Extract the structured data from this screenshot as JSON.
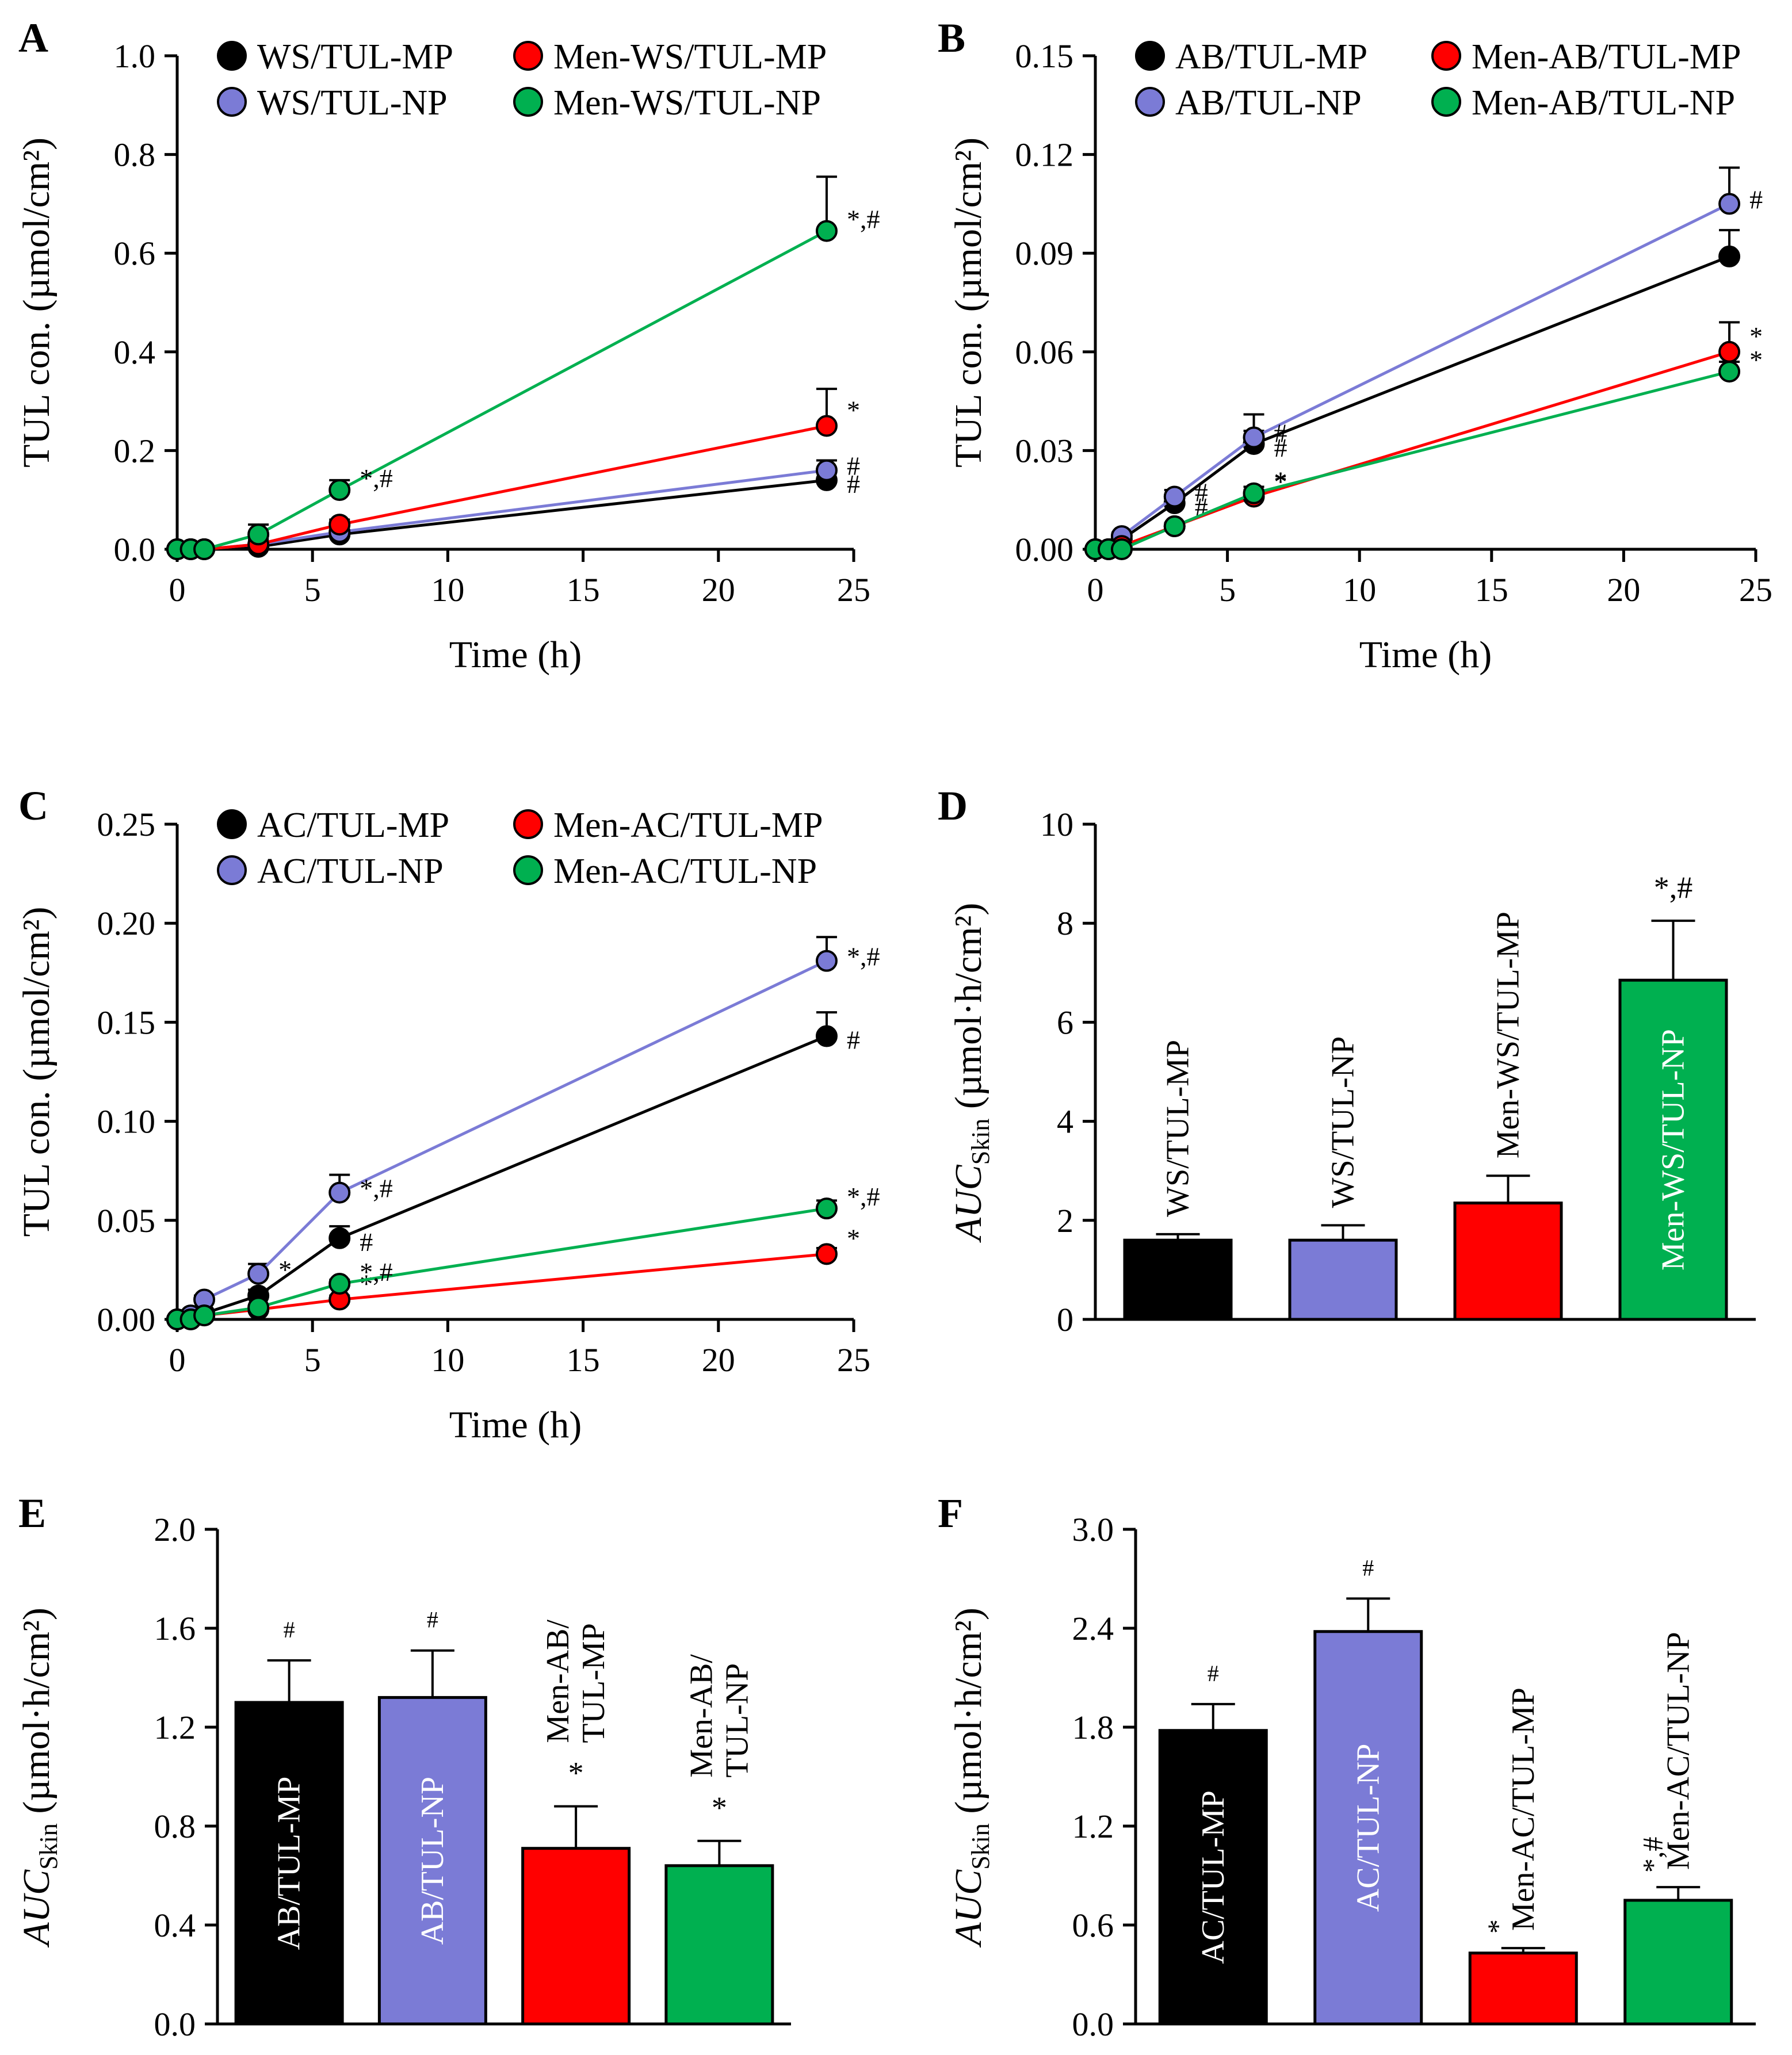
{
  "colors": {
    "black": "#000000",
    "blue": "#7b7bd6",
    "red": "#ff0000",
    "green": "#00b050"
  },
  "chart_data": [
    {
      "panel": "A",
      "type": "line",
      "xlabel": "Time  (h)",
      "ylabel": "TUL con. (µmol/cm²)",
      "xlim": [
        0,
        25
      ],
      "ylim": [
        0,
        1.0
      ],
      "xticks": [
        "0",
        "5",
        "10",
        "15",
        "20",
        "25"
      ],
      "yticks": [
        "0.0",
        "0.2",
        "0.4",
        "0.6",
        "0.8",
        "1.0"
      ],
      "x": [
        0,
        0.5,
        1,
        3,
        6,
        24
      ],
      "series": [
        {
          "name": "WS/TUL-MP",
          "color": "black",
          "values": [
            0,
            0,
            0,
            0.005,
            0.03,
            0.14
          ],
          "errors": [
            0,
            0,
            0,
            0.005,
            0.01,
            0.02
          ],
          "sig": [
            null,
            null,
            null,
            null,
            null,
            "#"
          ]
        },
        {
          "name": "WS/TUL-NP",
          "color": "blue",
          "values": [
            0,
            0,
            0,
            0.01,
            0.035,
            0.16
          ],
          "errors": [
            0,
            0,
            0,
            0.01,
            0.01,
            0.02
          ],
          "sig": [
            null,
            null,
            null,
            null,
            null,
            "#"
          ]
        },
        {
          "name": "Men-WS/TUL-MP",
          "color": "red",
          "values": [
            0,
            0,
            0,
            0.01,
            0.05,
            0.25
          ],
          "errors": [
            0,
            0,
            0,
            0.01,
            0.01,
            0.075
          ],
          "sig": [
            null,
            null,
            null,
            null,
            null,
            "*"
          ]
        },
        {
          "name": "Men-WS/TUL-NP",
          "color": "green",
          "values": [
            0,
            0,
            0,
            0.03,
            0.12,
            0.645
          ],
          "errors": [
            0,
            0,
            0,
            0.02,
            0.02,
            0.11
          ],
          "sig": [
            null,
            null,
            null,
            null,
            "*,#",
            "*,#"
          ]
        }
      ]
    },
    {
      "panel": "B",
      "type": "line",
      "xlabel": "Time  (h)",
      "ylabel": "TUL con. (µmol/cm²)",
      "xlim": [
        0,
        25
      ],
      "ylim": [
        0,
        0.15
      ],
      "xticks": [
        "0",
        "5",
        "10",
        "15",
        "20",
        "25"
      ],
      "yticks": [
        "0.00",
        "0.03",
        "0.06",
        "0.09",
        "0.12",
        "0.15"
      ],
      "x": [
        0,
        0.5,
        1,
        3,
        6,
        24
      ],
      "series": [
        {
          "name": "AB/TUL-MP",
          "color": "black",
          "values": [
            0,
            0,
            0.003,
            0.014,
            0.032,
            0.089
          ],
          "errors": [
            0,
            0,
            0.001,
            0.002,
            0.004,
            0.008
          ],
          "sig": [
            null,
            null,
            null,
            "#",
            "#",
            null
          ]
        },
        {
          "name": "AB/TUL-NP",
          "color": "blue",
          "values": [
            0,
            0,
            0.004,
            0.016,
            0.034,
            0.105
          ],
          "errors": [
            0,
            0,
            0.001,
            0.002,
            0.007,
            0.011
          ],
          "sig": [
            null,
            null,
            null,
            "#",
            "#",
            "#"
          ]
        },
        {
          "name": "Men-AB/TUL-MP",
          "color": "red",
          "values": [
            0,
            0,
            0.001,
            0.007,
            0.016,
            0.06
          ],
          "errors": [
            0,
            0,
            0,
            0.001,
            0.002,
            0.009
          ],
          "sig": [
            null,
            null,
            null,
            null,
            "*",
            "*"
          ]
        },
        {
          "name": "Men-AB/TUL-NP",
          "color": "green",
          "values": [
            0,
            0,
            0,
            0.007,
            0.017,
            0.054
          ],
          "errors": [
            0,
            0,
            0,
            0.001,
            0.002,
            0.003
          ],
          "sig": [
            null,
            null,
            null,
            null,
            "*",
            "*"
          ]
        }
      ]
    },
    {
      "panel": "C",
      "type": "line",
      "xlabel": "Time  (h)",
      "ylabel": "TUL con. (µmol/cm²)",
      "xlim": [
        0,
        25
      ],
      "ylim": [
        0,
        0.25
      ],
      "xticks": [
        "0",
        "5",
        "10",
        "15",
        "20",
        "25"
      ],
      "yticks": [
        "0.00",
        "0.05",
        "0.10",
        "0.15",
        "0.20",
        "0.25"
      ],
      "x": [
        0,
        0.5,
        1,
        3,
        6,
        24
      ],
      "series": [
        {
          "name": "AC/TUL-MP",
          "color": "black",
          "values": [
            0,
            0.001,
            0.003,
            0.012,
            0.041,
            0.143
          ],
          "errors": [
            0,
            0,
            0.001,
            0.003,
            0.006,
            0.012
          ],
          "sig": [
            null,
            null,
            null,
            null,
            "#",
            "#"
          ]
        },
        {
          "name": "AC/TUL-NP",
          "color": "blue",
          "values": [
            0,
            0.002,
            0.01,
            0.023,
            0.064,
            0.181
          ],
          "errors": [
            0,
            0,
            0.002,
            0.005,
            0.009,
            0.012
          ],
          "sig": [
            null,
            null,
            null,
            "*",
            "*,#",
            "*,#"
          ]
        },
        {
          "name": "Men-AC/TUL-MP",
          "color": "red",
          "values": [
            0,
            0,
            0.002,
            0.005,
            0.01,
            0.033
          ],
          "errors": [
            0,
            0,
            0,
            0.001,
            0.002,
            0.003
          ],
          "sig": [
            null,
            null,
            null,
            null,
            "*",
            "*"
          ]
        },
        {
          "name": "Men-AC/TUL-NP",
          "color": "green",
          "values": [
            0,
            0,
            0.002,
            0.006,
            0.018,
            0.056
          ],
          "errors": [
            0,
            0,
            0,
            0.001,
            0.002,
            0.004
          ],
          "sig": [
            null,
            null,
            null,
            null,
            "*,#",
            "*,#"
          ]
        }
      ]
    },
    {
      "panel": "D",
      "type": "bar",
      "ylabel_main": "AUC",
      "ylabel_sub": "Skin",
      "ylabel_unit": "(µmol·h/cm²)",
      "ylim": [
        0,
        10
      ],
      "yticks": [
        "0",
        "2",
        "4",
        "6",
        "8",
        "10"
      ],
      "categories": [
        "WS/TUL-MP",
        "WS/TUL-NP",
        "Men-WS/TUL-MP",
        "Men-WS/TUL-NP"
      ],
      "label_lines": [
        [
          "WS/TUL-MP"
        ],
        [
          "WS/TUL-NP"
        ],
        [
          "Men-WS/TUL-MP"
        ],
        [
          "Men-WS/TUL-NP"
        ]
      ],
      "label_inside": [
        false,
        false,
        false,
        true
      ],
      "values": [
        1.6,
        1.6,
        2.35,
        6.85
      ],
      "errors": [
        0.12,
        0.3,
        0.55,
        1.2
      ],
      "colors": [
        "black",
        "blue",
        "red",
        "green"
      ],
      "sig": [
        "",
        "",
        "",
        "*,#"
      ],
      "sig_sides": [
        false,
        false,
        false,
        false
      ]
    },
    {
      "panel": "E",
      "type": "bar",
      "ylabel_main": "AUC",
      "ylabel_sub": "Skin",
      "ylabel_unit": "(µmol·h/cm²)",
      "ylim": [
        0,
        2.0
      ],
      "yticks": [
        "0.0",
        "0.4",
        "0.8",
        "1.2",
        "1.6",
        "2.0"
      ],
      "categories": [
        "AB/TUL-MP",
        "AB/TUL-NP",
        "Men-AB/TUL-MP",
        "Men-AB/TUL-NP"
      ],
      "label_lines": [
        [
          "AB/TUL-MP"
        ],
        [
          "AB/TUL-NP"
        ],
        [
          "Men-AB/",
          "TUL-MP"
        ],
        [
          "Men-AB/",
          "TUL-NP"
        ]
      ],
      "label_inside": [
        true,
        true,
        false,
        false
      ],
      "values": [
        1.3,
        1.32,
        0.71,
        0.64
      ],
      "errors": [
        0.17,
        0.19,
        0.17,
        0.1
      ],
      "colors": [
        "black",
        "blue",
        "red",
        "green"
      ],
      "sig": [
        "#",
        "#",
        "*",
        "*"
      ],
      "sig_sides": [
        false,
        false,
        false,
        false
      ]
    },
    {
      "panel": "F",
      "type": "bar",
      "ylabel_main": "AUC",
      "ylabel_sub": "Skin",
      "ylabel_unit": "(µmol·h/cm²)",
      "ylim": [
        0,
        3.0
      ],
      "yticks": [
        "0.0",
        "0.6",
        "1.2",
        "1.8",
        "2.4",
        "3.0"
      ],
      "categories": [
        "AC/TUL-MP",
        "AC/TUL-NP",
        "Men-AC/TUL-MP",
        "Men-AC/TUL-NP"
      ],
      "label_lines": [
        [
          "AC/TUL-MP"
        ],
        [
          "AC/TUL-NP"
        ],
        [
          "Men-AC/TUL-MP"
        ],
        [
          "Men-AC/TUL-NP"
        ]
      ],
      "label_inside": [
        true,
        true,
        false,
        false
      ],
      "values": [
        1.78,
        2.38,
        0.43,
        0.75
      ],
      "errors": [
        0.16,
        0.2,
        0.03,
        0.08
      ],
      "colors": [
        "black",
        "blue",
        "red",
        "green"
      ],
      "sig": [
        "#",
        "#",
        "*",
        "*,#"
      ],
      "sig_sides": [
        false,
        false,
        true,
        true
      ]
    }
  ]
}
